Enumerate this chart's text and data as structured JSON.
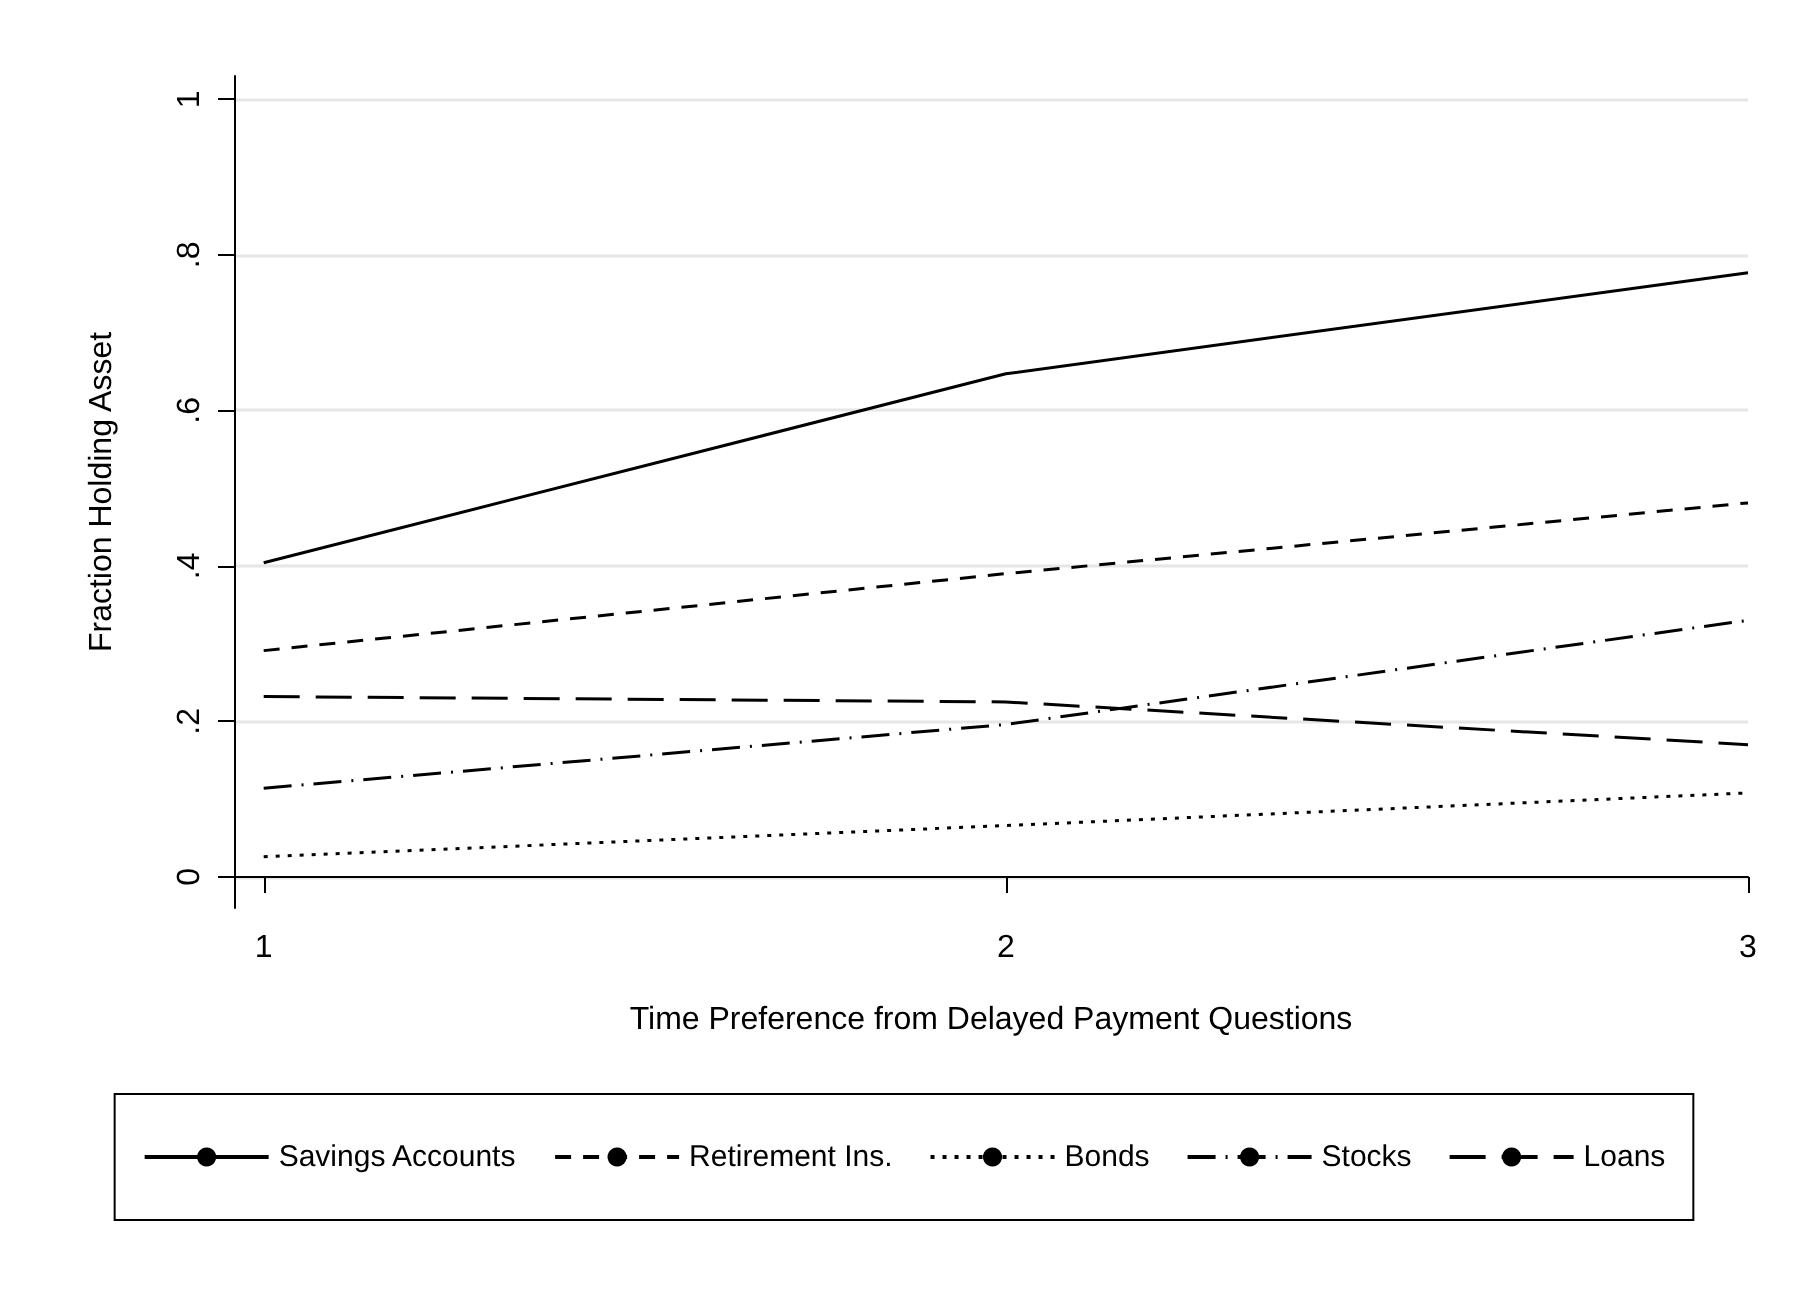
{
  "chart_data": {
    "type": "line",
    "xlabel": "Time Preference from Delayed Payment Questions",
    "ylabel": "Fraction Holding Asset",
    "x": [
      1,
      2,
      3
    ],
    "series": [
      {
        "name": "Savings Accounts",
        "color": "#000000",
        "line_style": "solid",
        "values": [
          0.404,
          0.647,
          0.777
        ]
      },
      {
        "name": "Retirement Ins.",
        "color": "#000000",
        "line_style": "dashed",
        "values": [
          0.291,
          0.39,
          0.481
        ]
      },
      {
        "name": "Bonds",
        "color": "#000000",
        "line_style": "dotted",
        "values": [
          0.026,
          0.066,
          0.108
        ]
      },
      {
        "name": "Stocks",
        "color": "#000000",
        "line_style": "dashdot",
        "values": [
          0.114,
          0.196,
          0.33
        ]
      },
      {
        "name": "Loans",
        "color": "#000000",
        "line_style": "longdash",
        "values": [
          0.232,
          0.225,
          0.17
        ]
      }
    ],
    "xlim": [
      0.96,
      3
    ],
    "xticks": [
      1,
      2,
      3
    ],
    "ylim": [
      -0.04,
      1.03
    ],
    "yticks": [
      {
        "value": 0,
        "label": "0"
      },
      {
        "value": 0.2,
        "label": ".2"
      },
      {
        "value": 0.4,
        "label": ".4"
      },
      {
        "value": 0.6,
        "label": ".6"
      },
      {
        "value": 0.8,
        "label": ".8"
      },
      {
        "value": 1,
        "label": "1"
      }
    ],
    "grid": "y",
    "legend": "bottom",
    "marker": "none"
  }
}
